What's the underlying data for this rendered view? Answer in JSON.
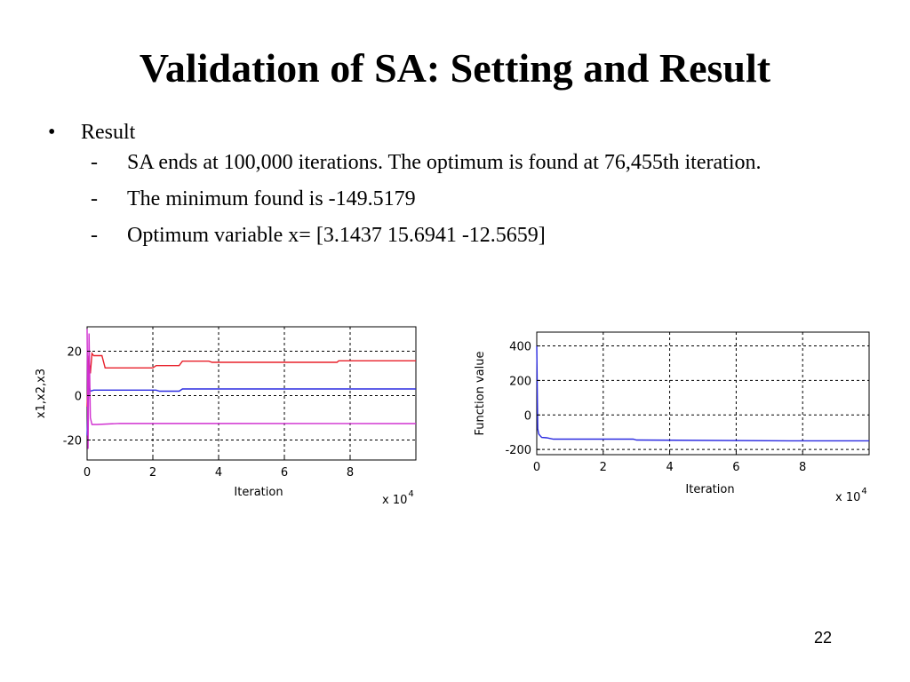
{
  "slide": {
    "title": "Validation of SA: Setting and Result",
    "bullet": {
      "marker": "•",
      "text": "Result"
    },
    "sub_bullets": [
      {
        "marker": "-",
        "text": "SA ends at 100,000 iterations. The optimum is found at 76,455th iteration."
      },
      {
        "marker": "-",
        "text": "The minimum found is -149.5179"
      },
      {
        "marker": "-",
        "text": "Optimum variable x= [3.1437   15.6941  -12.5659]"
      }
    ],
    "page_number": "22"
  },
  "chart_data": [
    {
      "type": "line",
      "xlabel": "Iteration",
      "ylabel": "x1,x2,x3",
      "x_multiplier": "x 10",
      "x_multiplier_exp": "4",
      "xlim": [
        0,
        10
      ],
      "ylim": [
        -29,
        31
      ],
      "xticks": [
        "0",
        "2",
        "4",
        "6",
        "8"
      ],
      "yticks": [
        "-20",
        "0",
        "20"
      ],
      "xtick_values": [
        0,
        2,
        4,
        6,
        8
      ],
      "ytick_values": [
        -20,
        0,
        20
      ],
      "grid": true,
      "series": [
        {
          "color": "#e8202a",
          "x": [
            0,
            0.05,
            0.1,
            0.15,
            0.2,
            0.3,
            0.45,
            0.55,
            2.0,
            2.1,
            2.8,
            2.9,
            3.7,
            3.8,
            7.6,
            7.65,
            10
          ],
          "y": [
            -5,
            18,
            10,
            19,
            18,
            18,
            18,
            12.5,
            12.5,
            13.5,
            13.5,
            15.5,
            15.5,
            15,
            15,
            15.7,
            15.7
          ]
        },
        {
          "color": "#2a2ae0",
          "x": [
            0,
            0.05,
            0.1,
            0.2,
            2.1,
            2.2,
            2.8,
            2.9,
            10
          ],
          "y": [
            -18,
            5,
            2,
            2.5,
            2.5,
            2,
            2,
            3,
            3
          ]
        },
        {
          "color": "#d030d0",
          "x": [
            0,
            0.03,
            0.06,
            0.1,
            0.15,
            0.3,
            1.0,
            10
          ],
          "y": [
            30,
            -24,
            28,
            -10,
            -13,
            -13,
            -12.5,
            -12.6
          ]
        }
      ]
    },
    {
      "type": "line",
      "xlabel": "Iteration",
      "ylabel": "Function value",
      "x_multiplier": "x 10",
      "x_multiplier_exp": "4",
      "xlim": [
        0,
        10
      ],
      "ylim": [
        -230,
        480
      ],
      "xticks": [
        "0",
        "2",
        "4",
        "6",
        "8"
      ],
      "yticks": [
        "-200",
        "0",
        "200",
        "400"
      ],
      "xtick_values": [
        0,
        2,
        4,
        6,
        8
      ],
      "ytick_values": [
        -200,
        0,
        200,
        400
      ],
      "grid": true,
      "series": [
        {
          "color": "#2a2ae0",
          "x": [
            0,
            0.03,
            0.06,
            0.1,
            0.15,
            0.3,
            0.5,
            2.9,
            3.0,
            7.6,
            10
          ],
          "y": [
            400,
            -80,
            -110,
            -120,
            -130,
            -132,
            -140,
            -140,
            -145,
            -149.5,
            -149.5
          ]
        }
      ]
    }
  ]
}
